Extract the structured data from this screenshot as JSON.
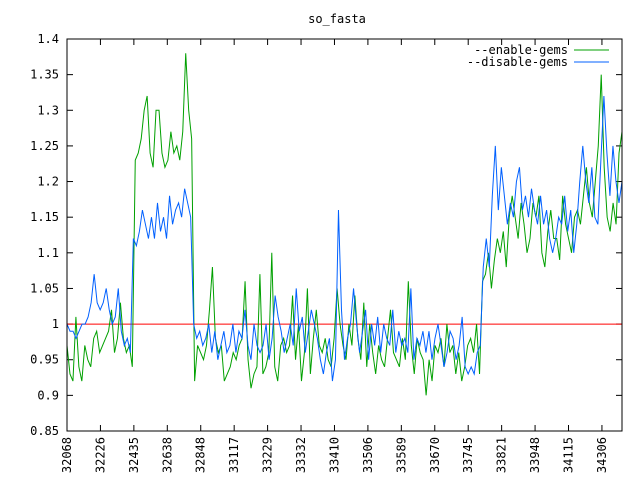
{
  "chart_data": {
    "type": "line",
    "title": "so_fasta",
    "xlabel": "",
    "ylabel": "",
    "ylim": [
      0.85,
      1.4
    ],
    "y_ticks": [
      "0.85",
      "0.9",
      "0.95",
      "1",
      "1.05",
      "1.1",
      "1.15",
      "1.2",
      "1.25",
      "1.3",
      "1.35",
      "1.4"
    ],
    "x_tick_labels": [
      "32068",
      "32226",
      "32435",
      "32638",
      "32848",
      "33117",
      "33229",
      "33332",
      "33410",
      "33506",
      "33589",
      "33670",
      "33745",
      "33821",
      "33948",
      "34115",
      "34306"
    ],
    "grid": false,
    "legend_position": "top-right",
    "reference_line": {
      "y": 1.0,
      "color": "#ff0000"
    },
    "series": [
      {
        "name": "--enable-gems",
        "color": "#00a000",
        "values": [
          0.97,
          0.93,
          0.92,
          1.01,
          0.94,
          0.92,
          0.97,
          0.95,
          0.94,
          0.98,
          0.99,
          0.96,
          0.97,
          0.98,
          0.99,
          1.02,
          0.96,
          0.98,
          1.03,
          0.98,
          0.96,
          0.97,
          0.94,
          1.23,
          1.24,
          1.26,
          1.3,
          1.32,
          1.24,
          1.22,
          1.3,
          1.3,
          1.24,
          1.22,
          1.23,
          1.27,
          1.24,
          1.25,
          1.23,
          1.27,
          1.38,
          1.3,
          1.26,
          0.92,
          0.97,
          0.96,
          0.95,
          0.97,
          1.02,
          1.08,
          0.98,
          0.96,
          0.97,
          0.92,
          0.93,
          0.94,
          0.96,
          0.95,
          0.97,
          0.98,
          1.06,
          0.95,
          0.91,
          0.93,
          0.94,
          1.07,
          0.93,
          0.94,
          0.96,
          1.1,
          0.94,
          0.92,
          0.97,
          0.98,
          0.96,
          0.97,
          1.04,
          0.95,
          1.0,
          0.92,
          0.96,
          1.05,
          0.93,
          0.98,
          1.02,
          0.97,
          0.96,
          0.98,
          0.95,
          0.94,
          0.98,
          1.05,
          1.0,
          0.97,
          0.95,
          1.0,
          0.97,
          1.04,
          0.98,
          0.95,
          1.03,
          0.94,
          1.0,
          0.96,
          0.93,
          0.97,
          0.95,
          0.94,
          0.98,
          1.02,
          0.96,
          0.95,
          0.94,
          0.98,
          0.95,
          1.06,
          0.97,
          0.93,
          0.98,
          0.96,
          0.95,
          0.9,
          0.95,
          0.92,
          0.97,
          0.96,
          0.98,
          0.94,
          1.0,
          0.96,
          0.97,
          0.93,
          0.96,
          0.92,
          0.94,
          0.97,
          0.98,
          0.96,
          1.0,
          0.93,
          1.06,
          1.07,
          1.1,
          1.05,
          1.09,
          1.12,
          1.1,
          1.13,
          1.08,
          1.15,
          1.18,
          1.15,
          1.12,
          1.17,
          1.14,
          1.1,
          1.12,
          1.17,
          1.15,
          1.18,
          1.1,
          1.08,
          1.13,
          1.16,
          1.12,
          1.12,
          1.09,
          1.18,
          1.14,
          1.12,
          1.1,
          1.15,
          1.16,
          1.14,
          1.18,
          1.22,
          1.17,
          1.15,
          1.2,
          1.25,
          1.35,
          1.22,
          1.15,
          1.13,
          1.17,
          1.14,
          1.24,
          1.27
        ]
      },
      {
        "name": "--disable-gems",
        "color": "#0060ff",
        "values": [
          1.0,
          0.99,
          0.99,
          0.98,
          0.99,
          1.0,
          1.0,
          1.01,
          1.03,
          1.07,
          1.03,
          1.02,
          1.03,
          1.05,
          1.02,
          1.0,
          1.01,
          1.05,
          0.99,
          0.97,
          0.98,
          0.96,
          1.12,
          1.11,
          1.13,
          1.16,
          1.14,
          1.12,
          1.15,
          1.12,
          1.17,
          1.13,
          1.15,
          1.12,
          1.18,
          1.14,
          1.16,
          1.17,
          1.15,
          1.19,
          1.17,
          1.15,
          1.0,
          0.98,
          0.99,
          0.97,
          0.98,
          1.0,
          0.96,
          0.99,
          0.95,
          0.97,
          0.99,
          0.96,
          0.97,
          1.0,
          0.96,
          0.99,
          0.98,
          1.02,
          0.97,
          0.95,
          1.0,
          0.97,
          0.96,
          0.97,
          1.0,
          0.95,
          0.98,
          1.04,
          1.01,
          0.99,
          0.96,
          0.98,
          1.0,
          0.97,
          1.05,
          0.99,
          1.01,
          0.96,
          0.99,
          1.02,
          1.0,
          0.98,
          0.95,
          0.93,
          0.96,
          0.98,
          0.92,
          0.95,
          1.16,
          1.02,
          0.95,
          0.98,
          1.0,
          1.05,
          1.0,
          0.96,
          0.99,
          1.02,
          0.95,
          1.0,
          0.97,
          1.01,
          0.96,
          1.0,
          0.98,
          0.97,
          1.02,
          0.96,
          0.99,
          0.97,
          0.98,
          0.96,
          1.05,
          0.95,
          0.98,
          0.97,
          0.99,
          0.96,
          0.99,
          0.95,
          0.98,
          1.0,
          0.97,
          0.94,
          0.96,
          0.99,
          0.98,
          0.95,
          0.97,
          1.01,
          0.94,
          0.93,
          0.94,
          0.93,
          0.96,
          0.97,
          1.08,
          1.12,
          1.08,
          1.18,
          1.25,
          1.16,
          1.22,
          1.18,
          1.14,
          1.17,
          1.15,
          1.2,
          1.22,
          1.16,
          1.18,
          1.15,
          1.19,
          1.16,
          1.14,
          1.18,
          1.14,
          1.16,
          1.12,
          1.1,
          1.12,
          1.15,
          1.14,
          1.18,
          1.13,
          1.16,
          1.1,
          1.14,
          1.2,
          1.25,
          1.2,
          1.17,
          1.22,
          1.15,
          1.14,
          1.23,
          1.32,
          1.24,
          1.18,
          1.25,
          1.2,
          1.17,
          1.2
        ]
      }
    ]
  }
}
